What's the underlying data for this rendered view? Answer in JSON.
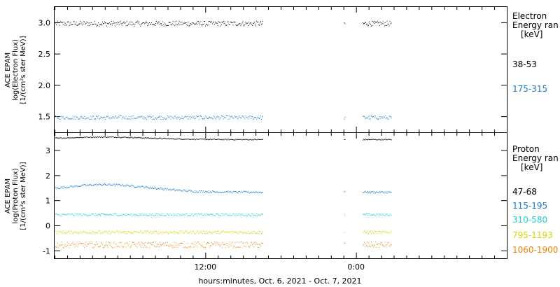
{
  "chart_data": {
    "type": "scatter",
    "xlabel": "hours:minutes, Oct.  6, 2021 - Oct.  7, 2021",
    "x_ticks": [
      "12:00",
      "0:00"
    ],
    "x_range_hours": [
      0,
      36
    ],
    "x_tick_hours": [
      12,
      24
    ],
    "data_gaps_hours": [
      [
        16.6,
        23.0
      ],
      [
        23.1,
        24.5
      ]
    ],
    "panels": [
      {
        "id": "electron",
        "ylabel_lines": [
          "ACE EPAM",
          "log(Electron Flux)",
          "[1/(cm²s ster MeV)]"
        ],
        "ylim": [
          1.25,
          3.25
        ],
        "yticks": [
          "1.5",
          "2.0",
          "2.5",
          "3.0"
        ],
        "ytick_values": [
          1.5,
          2.0,
          2.5,
          3.0
        ],
        "legend_title": [
          "Electron",
          "Energy ran",
          "[keV]"
        ],
        "series": [
          {
            "name": "38-53",
            "color": "#000000",
            "level": 2.99,
            "spread": 0.04,
            "drift": 0
          },
          {
            "name": "175-315",
            "color": "#1878c8",
            "level": 1.49,
            "spread": 0.03,
            "drift": 0
          }
        ]
      },
      {
        "id": "proton",
        "ylabel_lines": [
          "ACE EPAM",
          "log(Proton Flux)",
          "[1/(cm²s ster MeV)]"
        ],
        "ylim": [
          -1.3,
          3.7
        ],
        "yticks": [
          "-1",
          "0",
          "1",
          "2",
          "3"
        ],
        "ytick_values": [
          -1,
          0,
          1,
          2,
          3
        ],
        "legend_title": [
          "Proton",
          "Energy ran",
          "[keV]"
        ],
        "series": [
          {
            "name": "47-68",
            "color": "#000000",
            "level": 3.45,
            "spread": 0.02,
            "drift": 0.1
          },
          {
            "name": "115-195",
            "color": "#1878c8",
            "level": 1.35,
            "spread": 0.04,
            "drift": 0.3
          },
          {
            "name": "310-580",
            "color": "#22d0d0",
            "level": 0.45,
            "spread": 0.05,
            "drift": 0
          },
          {
            "name": "795-1193",
            "color": "#d6d600",
            "level": -0.25,
            "spread": 0.06,
            "drift": 0
          },
          {
            "name": "1060-1900",
            "color": "#f08000",
            "level": -0.75,
            "spread": 0.12,
            "drift": 0
          }
        ]
      }
    ]
  }
}
